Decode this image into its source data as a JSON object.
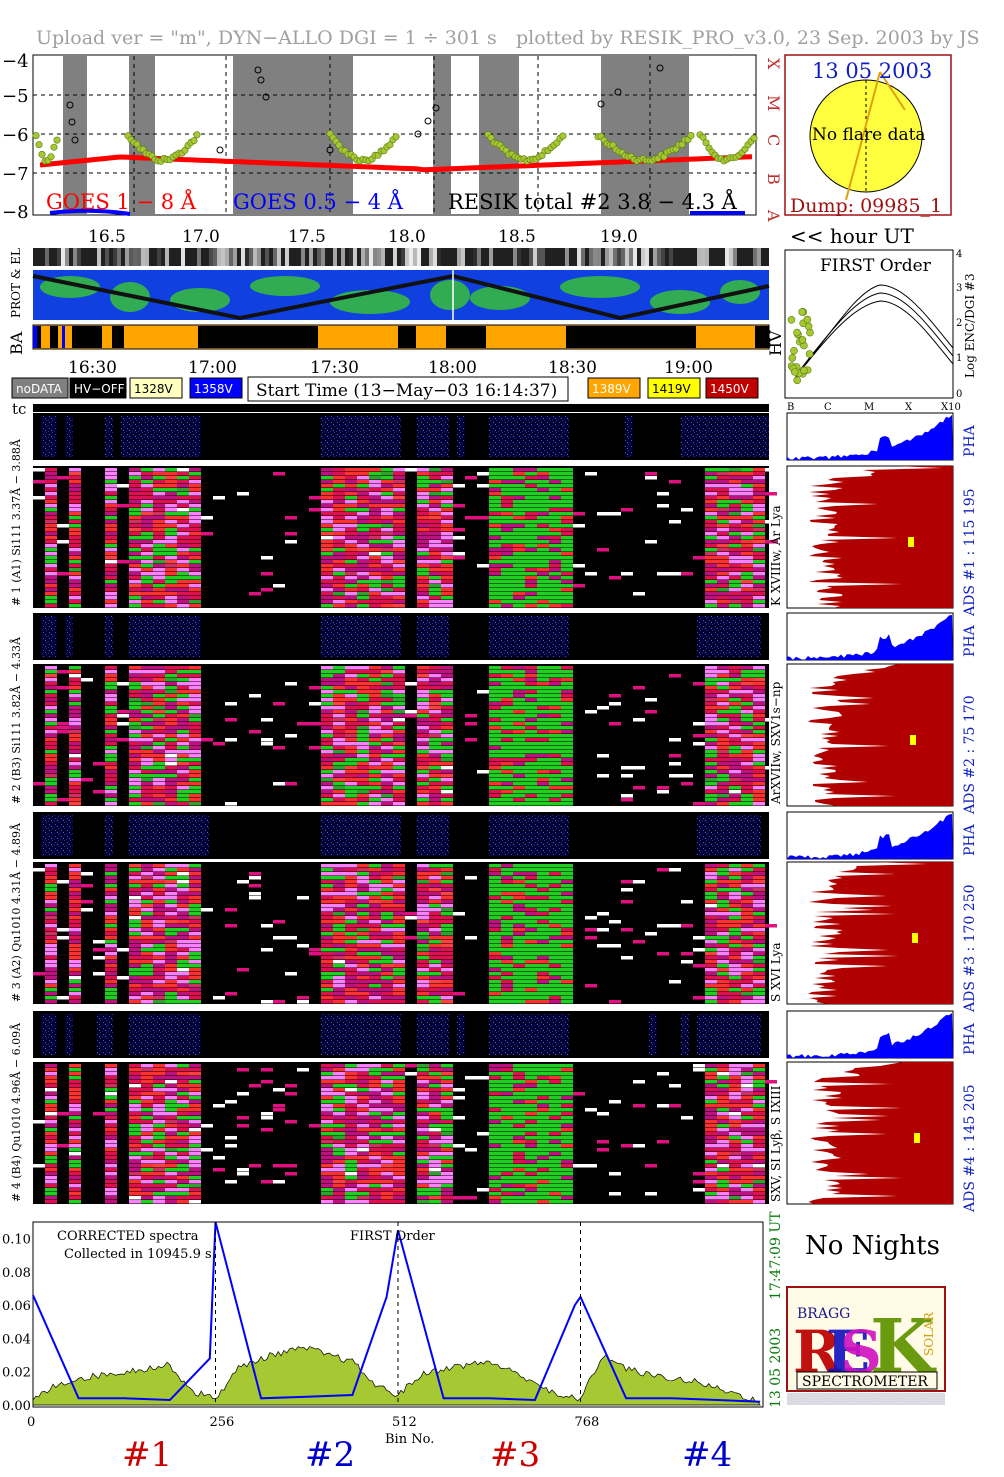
{
  "header": {
    "left": "Upload ver = \"m\", DYN−ALLO DGI =   1 ÷ 301 s",
    "right": "plotted by RESIK_PRO_v3.0, 23 Sep. 2003 by JS"
  },
  "goes": {
    "yticks": [
      "−4",
      "−5",
      "−6",
      "−7",
      "−8"
    ],
    "xticks": [
      "16.5",
      "17.0",
      "17.5",
      "18.0",
      "18.5",
      "19.0"
    ],
    "class_labels": [
      "X",
      "M",
      "C",
      "B",
      "A"
    ],
    "legend_goes18": "GOES 1 − 8 Å",
    "legend_goes054": "GOES 0.5 − 4 Å",
    "legend_resik": "RESIK total #2  3.8 − 4.3 Å",
    "hour_label": "<< hour UT",
    "colors": {
      "goes18": "#ff0000",
      "goes054": "#0000ff",
      "resik": "#a6c832",
      "night": "#808080"
    }
  },
  "sun": {
    "date": "13 05 2003",
    "message": "No flare data",
    "dump": "Dump: 09985_1"
  },
  "status": {
    "prot_label": "PROT & EL",
    "ba_label": "BA",
    "hv_label": "HV",
    "time_ticks": [
      "16:30",
      "17:00",
      "17:30",
      "18:00",
      "18:30",
      "19:00"
    ],
    "legend": [
      {
        "label": "noDATA",
        "bg": "#808080",
        "fg": "#ffffff"
      },
      {
        "label": "HV−OFF",
        "bg": "#000000",
        "fg": "#ffffff"
      },
      {
        "label": "1328V",
        "bg": "#ffffc0",
        "fg": "#000000"
      },
      {
        "label": "1358V",
        "bg": "#0000ff",
        "fg": "#ffffff"
      },
      {
        "label": "1389V",
        "bg": "#ffa500",
        "fg": "#ffffff"
      },
      {
        "label": "1419V",
        "bg": "#ffff00",
        "fg": "#000000"
      },
      {
        "label": "1450V",
        "bg": "#c00000",
        "fg": "#ffffff"
      }
    ],
    "start_time": "Start Time (13−May−03 16:14:37)"
  },
  "order_plot": {
    "title": "FIRST Order",
    "ylabel": "Log ENC/DGI #3",
    "yticks": [
      "4",
      "3",
      "2",
      "1",
      "0"
    ],
    "xticks": [
      "B",
      "C",
      "M",
      "X",
      "X10"
    ]
  },
  "spectrogram": {
    "tc_label": "tc",
    "channels": [
      {
        "pha_label": "# 4 (B4) Qu1010 4.96Å − 6.09Å",
        "side_label": "SXV, SI Lyβ, S IXIII",
        "ads_label": "ADS #4 :  145 205",
        "pha": "PHA"
      },
      {
        "pha_label": "# 3 (A2) Qu1010  4.31Å − 4.89Å",
        "side_label": "S XVI Lya",
        "ads_label": "ADS #3 :  170 250",
        "pha": "PHA"
      },
      {
        "pha_label": "# 2 (B3) Si111  3.82Å − 4.33Å",
        "side_label": "ArXVIIw, SXV1s−np",
        "ads_label": "ADS #2 :  75 170",
        "pha": "PHA"
      },
      {
        "pha_label": "# 1 (A1) Si111  3.37Å − 3.88Å",
        "side_label": "K XVIIIw, Ar Lya",
        "ads_label": "ADS #1 :  115 195",
        "pha": "PHA"
      }
    ]
  },
  "spectrum": {
    "note1": "CORRECTED spectra",
    "note2": "Collected in 10945.9 s",
    "order": "FIRST Order",
    "yticks": [
      "0.10",
      "0.08",
      "0.06",
      "0.04",
      "0.02",
      "0.00"
    ],
    "xticks": [
      "0",
      "256",
      "512",
      "768"
    ],
    "xlabel": "Bin No.",
    "side_time": "17:47:09 UT",
    "side_date": "13 05 2003",
    "channels": [
      "#1",
      "#2",
      "#3",
      "#4"
    ],
    "channel_colors": [
      "#cc0000",
      "#0000cc",
      "#cc0000",
      "#0000cc"
    ]
  },
  "no_nights": "No Nights",
  "logo": {
    "letters": "RESIK",
    "spectrometer": "SPECTROMETER",
    "small": [
      "BRAGG",
      "SOLAR"
    ]
  },
  "chart_data": {
    "type": "line",
    "title": "",
    "xlabel": "Bin No.",
    "ylabel": "",
    "xlim": [
      0,
      1024
    ],
    "ylim": [
      0,
      0.11
    ],
    "series": [
      {
        "x": [
          0,
          32,
          64,
          96,
          128,
          160,
          192,
          224,
          256,
          288,
          320,
          352,
          384,
          416,
          448,
          480,
          512,
          544,
          576,
          608,
          640,
          672,
          704,
          736,
          768,
          800,
          832,
          864,
          896,
          928,
          960,
          992,
          1020
        ],
        "values": [
          0.003,
          0.012,
          0.016,
          0.018,
          0.02,
          0.022,
          0.024,
          0.008,
          0.004,
          0.022,
          0.028,
          0.032,
          0.034,
          0.03,
          0.026,
          0.012,
          0.006,
          0.018,
          0.022,
          0.024,
          0.026,
          0.02,
          0.014,
          0.005,
          0.004,
          0.03,
          0.022,
          0.018,
          0.016,
          0.014,
          0.01,
          0.006,
          0.002
        ]
      },
      {
        "x": [
          0,
          64,
          128,
          192,
          248,
          256,
          320,
          384,
          448,
          496,
          512,
          576,
          640,
          704,
          760,
          768,
          832,
          896,
          960,
          1020
        ],
        "values": [
          0.066,
          0.004,
          0.004,
          0.003,
          0.028,
          0.11,
          0.004,
          0.005,
          0.006,
          0.065,
          0.105,
          0.004,
          0.004,
          0.003,
          0.06,
          0.065,
          0.004,
          0.004,
          0.003,
          0.002
        ]
      }
    ]
  }
}
